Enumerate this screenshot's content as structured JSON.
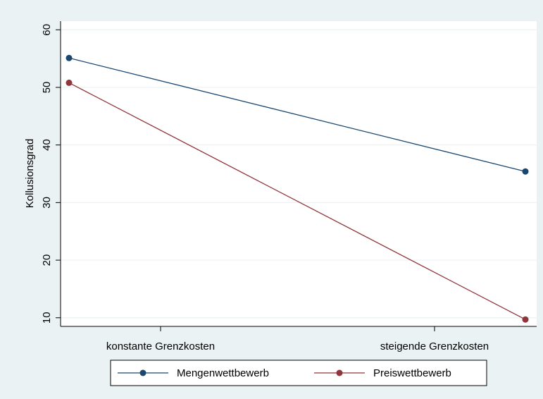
{
  "chart_data": {
    "type": "line",
    "categories": [
      "konstante Grenzkosten",
      "steigende Grenzkosten"
    ],
    "series": [
      {
        "name": "Mengenwettbewerb",
        "values": [
          55.1,
          35.4
        ],
        "color": "#1a476f"
      },
      {
        "name": "Preiswettbewerb",
        "values": [
          50.8,
          9.7
        ],
        "color": "#90353b"
      }
    ],
    "ylabel": "Kollusionsgrad",
    "xlabel": "",
    "yticks": [
      10,
      20,
      30,
      40,
      50,
      60
    ],
    "ylim": [
      8.5,
      61.5
    ],
    "grid": true,
    "legend_position": "bottom",
    "colors": {
      "background": "#eaf2f3",
      "plot_area": "#ffffff",
      "grid": "#eaf2f3"
    }
  }
}
